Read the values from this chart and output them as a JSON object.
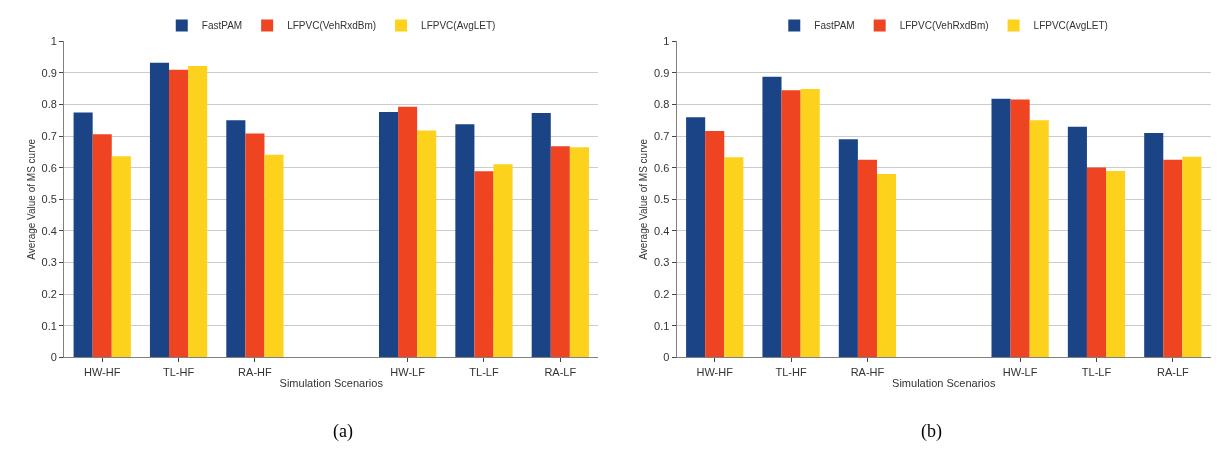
{
  "chart_data": [
    {
      "type": "bar",
      "xlabel": "Simulation Scenarios",
      "ylabel": "Average Value of MS curve",
      "annotations": [
        "(a)"
      ],
      "categories": [
        "HW-HF",
        "TL-HF",
        "RA-HF",
        null,
        "HW-LF",
        "TL-LF",
        "RA-LF"
      ],
      "ylim": [
        0,
        1
      ],
      "yticks": [
        0,
        0.1,
        0.2,
        0.3,
        0.4,
        0.5,
        0.6,
        0.7,
        0.8,
        0.9,
        1
      ],
      "grid": "y",
      "legend": "top",
      "series": [
        {
          "name": "FastPAM",
          "color": "#1a4486",
          "values": [
            0.775,
            0.932,
            0.75,
            null,
            0.776,
            0.738,
            0.773
          ]
        },
        {
          "name": "LFPVC(VehRxdBm)",
          "color": "#ee4422",
          "values": [
            0.706,
            0.91,
            0.708,
            null,
            0.793,
            0.589,
            0.668
          ]
        },
        {
          "name": "LFPVC(AvgLET)",
          "color": "#fcd21c",
          "values": [
            0.636,
            0.922,
            0.641,
            null,
            0.718,
            0.611,
            0.665
          ]
        }
      ]
    },
    {
      "type": "bar",
      "xlabel": "Simulation Scenarios",
      "ylabel": "Average Value of MS curve",
      "annotations": [
        "(b)"
      ],
      "categories": [
        "HW-HF",
        "TL-HF",
        "RA-HF",
        null,
        "HW-LF",
        "TL-LF",
        "RA-LF"
      ],
      "ylim": [
        0,
        1
      ],
      "yticks": [
        0,
        0.1,
        0.2,
        0.3,
        0.4,
        0.5,
        0.6,
        0.7,
        0.8,
        0.9,
        1
      ],
      "grid": "y",
      "legend": "top",
      "series": [
        {
          "name": "FastPAM",
          "color": "#1a4486",
          "values": [
            0.76,
            0.888,
            0.69,
            null,
            0.818,
            0.73,
            0.71
          ]
        },
        {
          "name": "LFPVC(VehRxdBm)",
          "color": "#ee4422",
          "values": [
            0.716,
            0.845,
            0.625,
            null,
            0.816,
            0.601,
            0.625
          ]
        },
        {
          "name": "LFPVC(AvgLET)",
          "color": "#fcd21c",
          "values": [
            0.633,
            0.849,
            0.58,
            null,
            0.75,
            0.59,
            0.635
          ]
        }
      ]
    }
  ]
}
